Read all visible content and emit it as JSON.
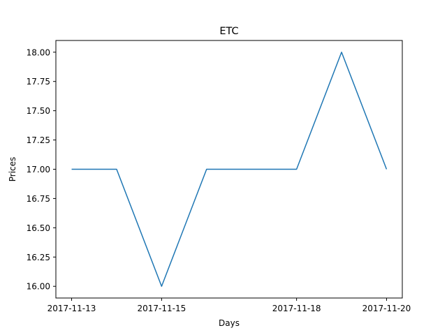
{
  "chart_data": {
    "type": "line",
    "title": "ETC",
    "xlabel": "Days",
    "ylabel": "Prices",
    "x": [
      "2017-11-13",
      "2017-11-14",
      "2017-11-15",
      "2017-11-16",
      "2017-11-17",
      "2017-11-18",
      "2017-11-19",
      "2017-11-20"
    ],
    "series": [
      {
        "values": [
          17.0,
          17.0,
          16.0,
          17.0,
          17.0,
          17.0,
          18.0,
          17.0
        ],
        "color": "#1f77b4"
      }
    ],
    "xticks": [
      "2017-11-13",
      "2017-11-15",
      "2017-11-18",
      "2017-11-20"
    ],
    "yticks": [
      "16.00",
      "16.25",
      "16.50",
      "16.75",
      "17.00",
      "17.25",
      "17.50",
      "17.75",
      "18.00"
    ],
    "ylim": [
      15.9,
      18.1
    ],
    "grid": false
  }
}
